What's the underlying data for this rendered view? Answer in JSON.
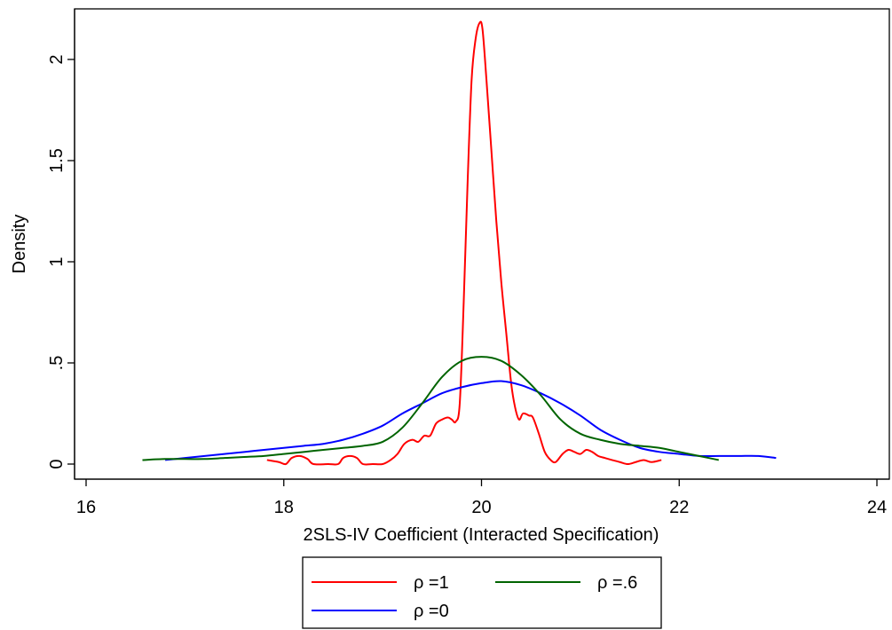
{
  "chart_data": {
    "type": "line",
    "title": "",
    "xlabel": "2SLS-IV Coefficient (Interacted Specification)",
    "ylabel": "Density",
    "xlim": [
      16,
      24
    ],
    "ylim": [
      -0.06,
      2.25
    ],
    "x_ticks": [
      16,
      18,
      20,
      22,
      24
    ],
    "x_tick_labels": [
      "16",
      "18",
      "20",
      "22",
      "24"
    ],
    "y_ticks": [
      0,
      0.5,
      1,
      1.5,
      2
    ],
    "y_tick_labels": [
      "0",
      ".5",
      "1",
      "1.5",
      "2"
    ],
    "grid": false,
    "legend_position": "bottom",
    "series": [
      {
        "name": "ρ =1",
        "color": "#ff0000",
        "points": [
          [
            17.83,
            0.02
          ],
          [
            17.95,
            0.01
          ],
          [
            18.02,
            0.0
          ],
          [
            18.08,
            0.03
          ],
          [
            18.16,
            0.04
          ],
          [
            18.24,
            0.025
          ],
          [
            18.3,
            0.0
          ],
          [
            18.45,
            0.0
          ],
          [
            18.55,
            0.0
          ],
          [
            18.6,
            0.03
          ],
          [
            18.67,
            0.04
          ],
          [
            18.74,
            0.03
          ],
          [
            18.8,
            0.0
          ],
          [
            18.9,
            0.0
          ],
          [
            19.0,
            0.0
          ],
          [
            19.08,
            0.02
          ],
          [
            19.15,
            0.05
          ],
          [
            19.22,
            0.1
          ],
          [
            19.3,
            0.12
          ],
          [
            19.36,
            0.11
          ],
          [
            19.42,
            0.14
          ],
          [
            19.48,
            0.14
          ],
          [
            19.54,
            0.2
          ],
          [
            19.6,
            0.22
          ],
          [
            19.66,
            0.23
          ],
          [
            19.7,
            0.22
          ],
          [
            19.74,
            0.21
          ],
          [
            19.78,
            0.3
          ],
          [
            19.82,
            0.8
          ],
          [
            19.86,
            1.4
          ],
          [
            19.9,
            1.9
          ],
          [
            19.94,
            2.1
          ],
          [
            19.98,
            2.18
          ],
          [
            20.01,
            2.15
          ],
          [
            20.05,
            1.9
          ],
          [
            20.1,
            1.55
          ],
          [
            20.15,
            1.2
          ],
          [
            20.2,
            0.9
          ],
          [
            20.25,
            0.65
          ],
          [
            20.3,
            0.4
          ],
          [
            20.34,
            0.28
          ],
          [
            20.38,
            0.22
          ],
          [
            20.42,
            0.25
          ],
          [
            20.48,
            0.24
          ],
          [
            20.52,
            0.23
          ],
          [
            20.58,
            0.15
          ],
          [
            20.64,
            0.06
          ],
          [
            20.7,
            0.02
          ],
          [
            20.75,
            0.01
          ],
          [
            20.82,
            0.05
          ],
          [
            20.88,
            0.07
          ],
          [
            20.94,
            0.06
          ],
          [
            21.0,
            0.05
          ],
          [
            21.06,
            0.07
          ],
          [
            21.12,
            0.06
          ],
          [
            21.18,
            0.04
          ],
          [
            21.25,
            0.03
          ],
          [
            21.32,
            0.02
          ],
          [
            21.4,
            0.01
          ],
          [
            21.48,
            0.0
          ],
          [
            21.56,
            0.01
          ],
          [
            21.64,
            0.02
          ],
          [
            21.72,
            0.01
          ],
          [
            21.82,
            0.02
          ]
        ]
      },
      {
        "name": "ρ =0",
        "color": "#0000ff",
        "points": [
          [
            16.8,
            0.02
          ],
          [
            17.0,
            0.03
          ],
          [
            17.2,
            0.04
          ],
          [
            17.4,
            0.05
          ],
          [
            17.6,
            0.06
          ],
          [
            17.8,
            0.07
          ],
          [
            18.0,
            0.08
          ],
          [
            18.2,
            0.09
          ],
          [
            18.4,
            0.1
          ],
          [
            18.6,
            0.12
          ],
          [
            18.8,
            0.15
          ],
          [
            19.0,
            0.19
          ],
          [
            19.2,
            0.25
          ],
          [
            19.4,
            0.3
          ],
          [
            19.6,
            0.35
          ],
          [
            19.8,
            0.38
          ],
          [
            20.0,
            0.4
          ],
          [
            20.2,
            0.41
          ],
          [
            20.4,
            0.39
          ],
          [
            20.6,
            0.35
          ],
          [
            20.8,
            0.3
          ],
          [
            21.0,
            0.24
          ],
          [
            21.2,
            0.17
          ],
          [
            21.4,
            0.12
          ],
          [
            21.6,
            0.08
          ],
          [
            21.8,
            0.06
          ],
          [
            22.0,
            0.05
          ],
          [
            22.2,
            0.04
          ],
          [
            22.4,
            0.04
          ],
          [
            22.6,
            0.04
          ],
          [
            22.8,
            0.04
          ],
          [
            22.98,
            0.03
          ]
        ]
      },
      {
        "name": "ρ =.6",
        "color": "#006400",
        "points": [
          [
            16.57,
            0.02
          ],
          [
            16.8,
            0.025
          ],
          [
            17.0,
            0.025
          ],
          [
            17.2,
            0.025
          ],
          [
            17.4,
            0.03
          ],
          [
            17.6,
            0.035
          ],
          [
            17.8,
            0.04
          ],
          [
            18.0,
            0.05
          ],
          [
            18.2,
            0.06
          ],
          [
            18.4,
            0.07
          ],
          [
            18.6,
            0.08
          ],
          [
            18.8,
            0.09
          ],
          [
            19.0,
            0.11
          ],
          [
            19.2,
            0.18
          ],
          [
            19.4,
            0.3
          ],
          [
            19.6,
            0.43
          ],
          [
            19.8,
            0.51
          ],
          [
            20.0,
            0.53
          ],
          [
            20.2,
            0.51
          ],
          [
            20.4,
            0.44
          ],
          [
            20.6,
            0.34
          ],
          [
            20.8,
            0.22
          ],
          [
            21.0,
            0.15
          ],
          [
            21.2,
            0.12
          ],
          [
            21.4,
            0.1
          ],
          [
            21.6,
            0.09
          ],
          [
            21.8,
            0.08
          ],
          [
            22.0,
            0.06
          ],
          [
            22.2,
            0.04
          ],
          [
            22.4,
            0.02
          ]
        ]
      }
    ],
    "legend_rows": [
      [
        "ρ =1",
        "ρ =.6"
      ],
      [
        "ρ =0"
      ]
    ]
  }
}
